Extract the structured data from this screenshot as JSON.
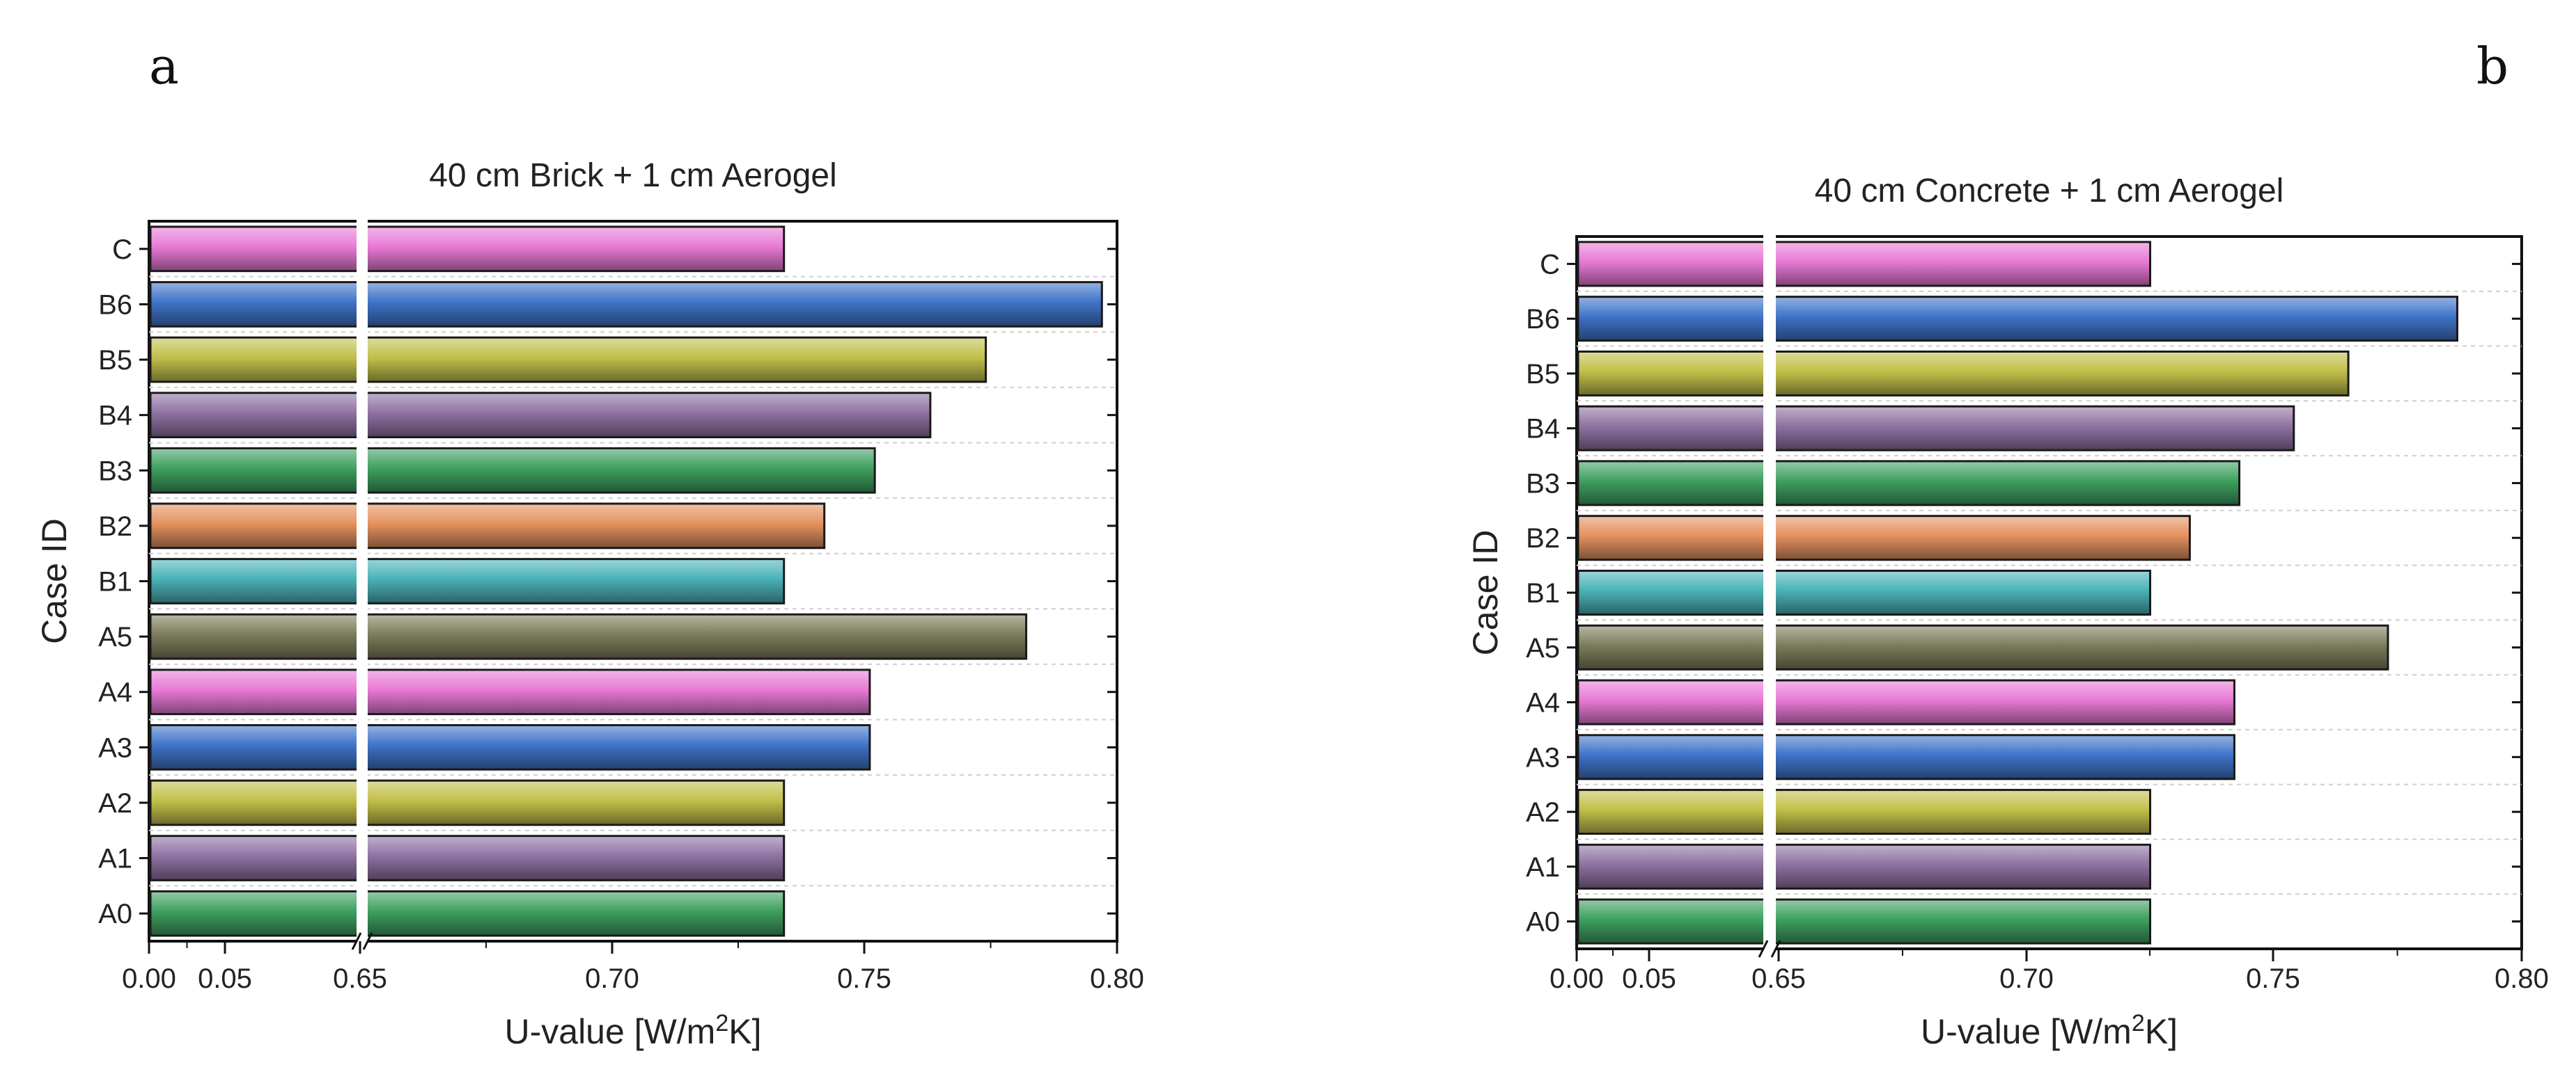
{
  "panel_labels": [
    "a",
    "b"
  ],
  "chart_data": [
    {
      "type": "bar",
      "orientation": "horizontal",
      "panel": "a",
      "title": "40 cm Brick + 1 cm Aerogel",
      "xlabel_pre": "U-value [W/m",
      "xlabel_sup": "2",
      "xlabel_post": "K]",
      "ylabel": "Case ID",
      "axis_break": {
        "from": 0.1,
        "to": 0.65
      },
      "xlim": [
        0,
        0.8
      ],
      "xticks": [
        "0.00",
        "0.05",
        "0.65",
        "0.70",
        "0.75",
        "0.80"
      ],
      "categories": [
        "C",
        "B6",
        "B5",
        "B4",
        "B3",
        "B2",
        "B1",
        "A5",
        "A4",
        "A3",
        "A2",
        "A1",
        "A0"
      ],
      "values": [
        0.734,
        0.797,
        0.774,
        0.763,
        0.752,
        0.742,
        0.734,
        0.782,
        0.751,
        0.751,
        0.734,
        0.734,
        0.734
      ],
      "colors": [
        "#e87ad6",
        "#3f74c8",
        "#c2c04a",
        "#8f72a3",
        "#3ea060",
        "#e4925f",
        "#4ab2b8",
        "#7d7d5c",
        "#e87ad6",
        "#3f74c8",
        "#c2c04a",
        "#8f72a3",
        "#3ea060"
      ]
    },
    {
      "type": "bar",
      "orientation": "horizontal",
      "panel": "b",
      "title": "40 cm Concrete + 1 cm Aerogel",
      "xlabel_pre": "U-value [W/m",
      "xlabel_sup": "2",
      "xlabel_post": "K]",
      "ylabel": "Case ID",
      "axis_break": {
        "from": 0.1,
        "to": 0.65
      },
      "xlim": [
        0,
        0.8
      ],
      "xticks": [
        "0.00",
        "0.05",
        "0.65",
        "0.70",
        "0.75",
        "0.80"
      ],
      "categories": [
        "C",
        "B6",
        "B5",
        "B4",
        "B3",
        "B2",
        "B1",
        "A5",
        "A4",
        "A3",
        "A2",
        "A1",
        "A0"
      ],
      "values": [
        0.725,
        0.787,
        0.765,
        0.754,
        0.743,
        0.733,
        0.725,
        0.773,
        0.742,
        0.742,
        0.725,
        0.725,
        0.725
      ],
      "colors": [
        "#e87ad6",
        "#3f74c8",
        "#c2c04a",
        "#8f72a3",
        "#3ea060",
        "#e4925f",
        "#4ab2b8",
        "#7d7d5c",
        "#e87ad6",
        "#3f74c8",
        "#c2c04a",
        "#8f72a3",
        "#3ea060"
      ]
    }
  ]
}
